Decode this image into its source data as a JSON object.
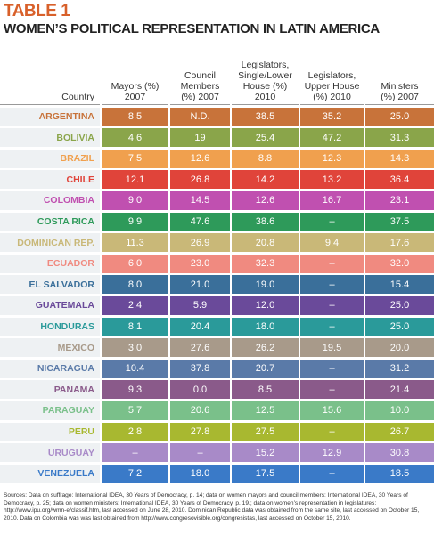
{
  "header": {
    "label": "TABLE 1",
    "title": "WOMEN’S POLITICAL REPRESENTATION IN LATIN AMERICA"
  },
  "table": {
    "columns": [
      "Country",
      "Mayors (%)\n2007",
      "Council\nMembers\n(%) 2007",
      "Legislators,\nSingle/Lower\nHouse (%)\n2010",
      "Legislators,\nUpper House\n(%) 2010",
      "Ministers\n(%) 2007"
    ],
    "rows": [
      {
        "color": "#c8733a",
        "cells": [
          "ARGENTINA",
          "8.5",
          "N.D.",
          "38.5",
          "35.2",
          "25.0"
        ]
      },
      {
        "color": "#8aa54a",
        "cells": [
          "BOLIVIA",
          "4.6",
          "19",
          "25.4",
          "47.2",
          "31.3"
        ]
      },
      {
        "color": "#f0a04e",
        "cells": [
          "BRAZIL",
          "7.5",
          "12.6",
          "8.8",
          "12.3",
          "14.3"
        ]
      },
      {
        "color": "#e0443a",
        "cells": [
          "CHILE",
          "12.1",
          "26.8",
          "14.2",
          "13.2",
          "36.4"
        ]
      },
      {
        "color": "#c050b0",
        "cells": [
          "COLOMBIA",
          "9.0",
          "14.5",
          "12.6",
          "16.7",
          "23.1"
        ]
      },
      {
        "color": "#2e9a5a",
        "cells": [
          "COSTA RICA",
          "9.9",
          "47.6",
          "38.6",
          "–",
          "37.5"
        ]
      },
      {
        "color": "#c9b878",
        "cells": [
          "DOMINICAN REP.",
          "11.3",
          "26.9",
          "20.8",
          "9.4",
          "17.6"
        ]
      },
      {
        "color": "#f08a80",
        "cells": [
          "ECUADOR",
          "6.0",
          "23.0",
          "32.3",
          "–",
          "32.0"
        ]
      },
      {
        "color": "#3a6f9a",
        "cells": [
          "EL SALVADOR",
          "8.0",
          "21.0",
          "19.0",
          "–",
          "15.4"
        ]
      },
      {
        "color": "#6a4a9a",
        "cells": [
          "GUATEMALA",
          "2.4",
          "5.9",
          "12.0",
          "–",
          "25.0"
        ]
      },
      {
        "color": "#2a9a9a",
        "cells": [
          "HONDURAS",
          "8.1",
          "20.4",
          "18.0",
          "–",
          "25.0"
        ]
      },
      {
        "color": "#a89a8a",
        "cells": [
          "MEXICO",
          "3.0",
          "27.6",
          "26.2",
          "19.5",
          "20.0"
        ]
      },
      {
        "color": "#5a7aa8",
        "cells": [
          "NICARAGUA",
          "10.4",
          "37.8",
          "20.7",
          "–",
          "31.2"
        ]
      },
      {
        "color": "#8a5a8a",
        "cells": [
          "PANAMA",
          "9.3",
          "0.0",
          "8.5",
          "–",
          "21.4"
        ]
      },
      {
        "color": "#7ac08a",
        "cells": [
          "PARAGUAY",
          "5.7",
          "20.6",
          "12.5",
          "15.6",
          "10.0"
        ]
      },
      {
        "color": "#a8b830",
        "cells": [
          "PERU",
          "2.8",
          "27.8",
          "27.5",
          "–",
          "26.7"
        ]
      },
      {
        "color": "#a88ac8",
        "cells": [
          "URUGUAY",
          "–",
          "–",
          "15.2",
          "12.9",
          "30.8"
        ]
      },
      {
        "color": "#3a7ac8",
        "cells": [
          "VENEZUELA",
          "7.2",
          "18.0",
          "17.5",
          "–",
          "18.5"
        ]
      }
    ]
  },
  "footer": {
    "sources": "Sources: Data on suffrage: International IDEA, 30 Years of Democracy, p. 14; data on women mayors and council members: International IDEA, 30 Years of Democracy, p. 25; data on women ministers: International IDEA, 30 Years of Democracy, p. 19.; data on women’s representation in legislatures: http://www.ipu.org/wmn-e/classif.htm, last accessed on June 28, 2010. Dominican Republic data was obtained from the same site, last accessed on October 15, 2010. Data on Colombia was was last obtained from http://www.congresovisible.org/congresistas, last accessed on October 15, 2010."
  }
}
